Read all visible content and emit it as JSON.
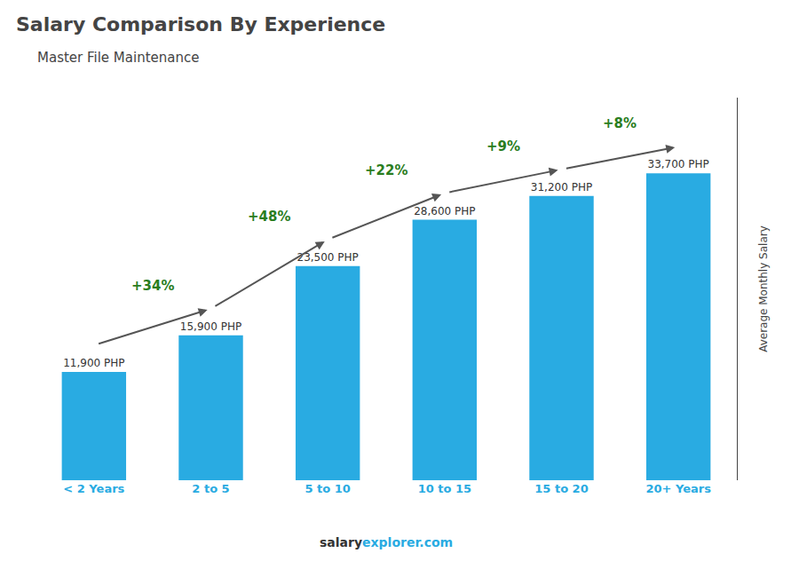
{
  "chart_data": {
    "type": "bar",
    "title": "Salary Comparison By Experience",
    "subtitle": "Master File Maintenance",
    "categories": [
      "< 2 Years",
      "2 to 5",
      "5 to 10",
      "10 to 15",
      "15 to 20",
      "20+ Years"
    ],
    "values": [
      11900,
      15900,
      23500,
      28600,
      31200,
      33700
    ],
    "value_labels": [
      "11,900 PHP",
      "15,900 PHP",
      "23,500 PHP",
      "28,600 PHP",
      "31,200 PHP",
      "33,700 PHP"
    ],
    "data_labels": true,
    "color": "#29ABE2",
    "annotations": [
      "+34%",
      "+48%",
      "+22%",
      "+9%",
      "+8%"
    ],
    "ylabel": "Average Monthly Salary",
    "footer": [
      "salary",
      "explorer.com"
    ],
    "ylim": [
      0,
      42000
    ],
    "yticks": [],
    "tick_labels": "x",
    "grid": false
  }
}
